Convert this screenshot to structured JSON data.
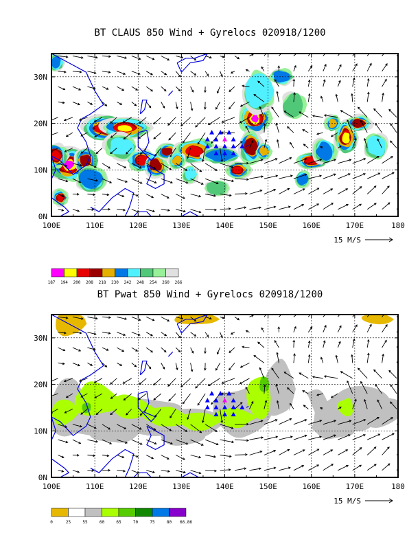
{
  "panels": [
    {
      "title": "BT CLAUS 850 Wind + Gyrelocs 020918/1200",
      "legend_values": [
        "187",
        "194",
        "200",
        "208",
        "218",
        "230",
        "242",
        "248",
        "254",
        "260",
        "266"
      ],
      "legend_colors": [
        "#ff00ff",
        "#ffff00",
        "#e60000",
        "#9b0000",
        "#e6b000",
        "#0078e6",
        "#50f0ff",
        "#50c878",
        "#98f098",
        "#e0e0e0"
      ],
      "blob_colors": {
        "outer": "#e0e0e0",
        "c1": "#98f098",
        "c2": "#50c878",
        "c3": "#50f0ff",
        "c4": "#0078e6",
        "c5": "#e6b000",
        "c6": "#9b0000",
        "c7": "#e60000",
        "c8": "#ffff00",
        "c9": "#ff00ff"
      }
    },
    {
      "title": "BT Pwat 850 Wind + Gyrelocs 020918/1200",
      "legend_values": [
        "0",
        "25",
        "55",
        "60",
        "65",
        "70",
        "75",
        "80",
        "66.86"
      ],
      "legend_colors": [
        "#e6b800",
        "#ffffff",
        "#c0c0c0",
        "#aaff00",
        "#55cc00",
        "#118800",
        "#0078e6",
        "#8800cc"
      ],
      "blob_colors": {
        "dry": "#e6b800",
        "moist": "#c0c0c0",
        "wet1": "#aaff00",
        "wet2": "#55cc00"
      }
    }
  ],
  "axes": {
    "x_labels": [
      "100E",
      "110E",
      "120E",
      "130E",
      "140E",
      "150E",
      "160E",
      "170E",
      "180"
    ],
    "y_labels": [
      "30N",
      "20N",
      "10N",
      "0N"
    ],
    "wind_scale_label": "15 M/S"
  },
  "map": {
    "coast_color": "#0000dd",
    "gyre_marker_color": "#0000ff",
    "gyre_center_color": "#ff00ff"
  }
}
